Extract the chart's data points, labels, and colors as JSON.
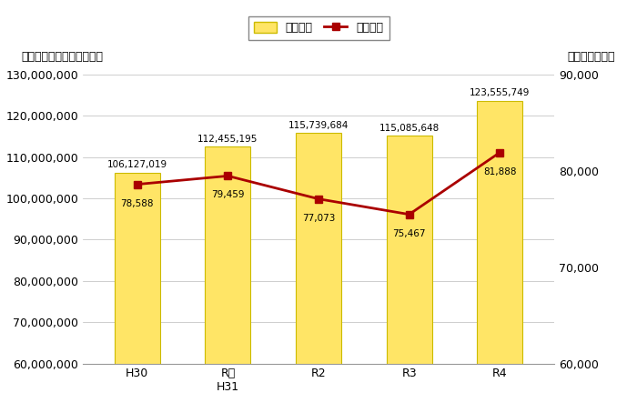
{
  "categories": [
    "H30",
    "R元\nH31",
    "R2",
    "R3",
    "R4"
  ],
  "bar_values": [
    106127019,
    112455195,
    115739684,
    115085648,
    123555749
  ],
  "line_values": [
    78588,
    79459,
    77073,
    75467,
    81888
  ],
  "bar_labels": [
    "106,127,019",
    "112,455,195",
    "115,739,684",
    "115,085,648",
    "123,555,749"
  ],
  "line_labels": [
    "78,588",
    "79,459",
    "77,073",
    "75,467",
    "81,888"
  ],
  "bar_color": "#FFE566",
  "bar_edge_color": "#CCBB00",
  "line_color": "#AA0000",
  "marker_face": "#AA0000",
  "ylabel_left": "退職手当給付金額（千円）",
  "ylabel_right": "給付人員（人）",
  "legend_bar": "給付金額",
  "legend_line": "給付人員",
  "ylim_left": [
    60000000,
    130000000
  ],
  "ylim_right": [
    60000,
    90000
  ],
  "yticks_left": [
    60000000,
    70000000,
    80000000,
    90000000,
    100000000,
    110000000,
    120000000,
    130000000
  ],
  "yticks_right": [
    60000,
    70000,
    80000,
    90000
  ],
  "bg_color": "#FFFFFF",
  "grid_color": "#BBBBBB",
  "bar_width": 0.5,
  "fig_width": 7.0,
  "fig_height": 4.54,
  "dpi": 100
}
